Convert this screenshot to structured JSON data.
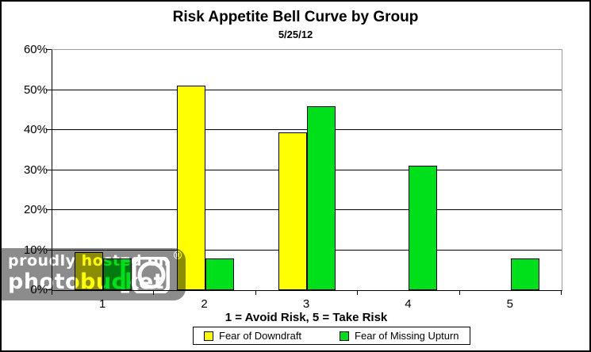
{
  "chart_data": {
    "type": "bar",
    "title": "Risk Appetite Bell Curve by Group",
    "subtitle": "5/25/12",
    "xlabel": "1 = Avoid Risk, 5 = Take Risk",
    "ylabel": "",
    "categories": [
      "1",
      "2",
      "3",
      "4",
      "5"
    ],
    "series": [
      {
        "name": "Fear of Downdraft",
        "color": "#FFFF00",
        "values": [
          9.5,
          51,
          39.5,
          0,
          0
        ]
      },
      {
        "name": "Fear of Missing Upturn",
        "color": "#00E01A",
        "values": [
          8,
          8,
          46,
          31,
          8
        ]
      }
    ],
    "ylim": [
      0,
      60
    ],
    "ytick_step": 10,
    "ytick_labels": [
      "0%",
      "10%",
      "20%",
      "30%",
      "40%",
      "50%",
      "60%"
    ],
    "grid": true,
    "legend_position": "bottom"
  },
  "watermark": {
    "line1": "proudly hosted on",
    "line2": "photobucket",
    "registered": "®",
    "overlay_color": "#8c8c8c"
  }
}
